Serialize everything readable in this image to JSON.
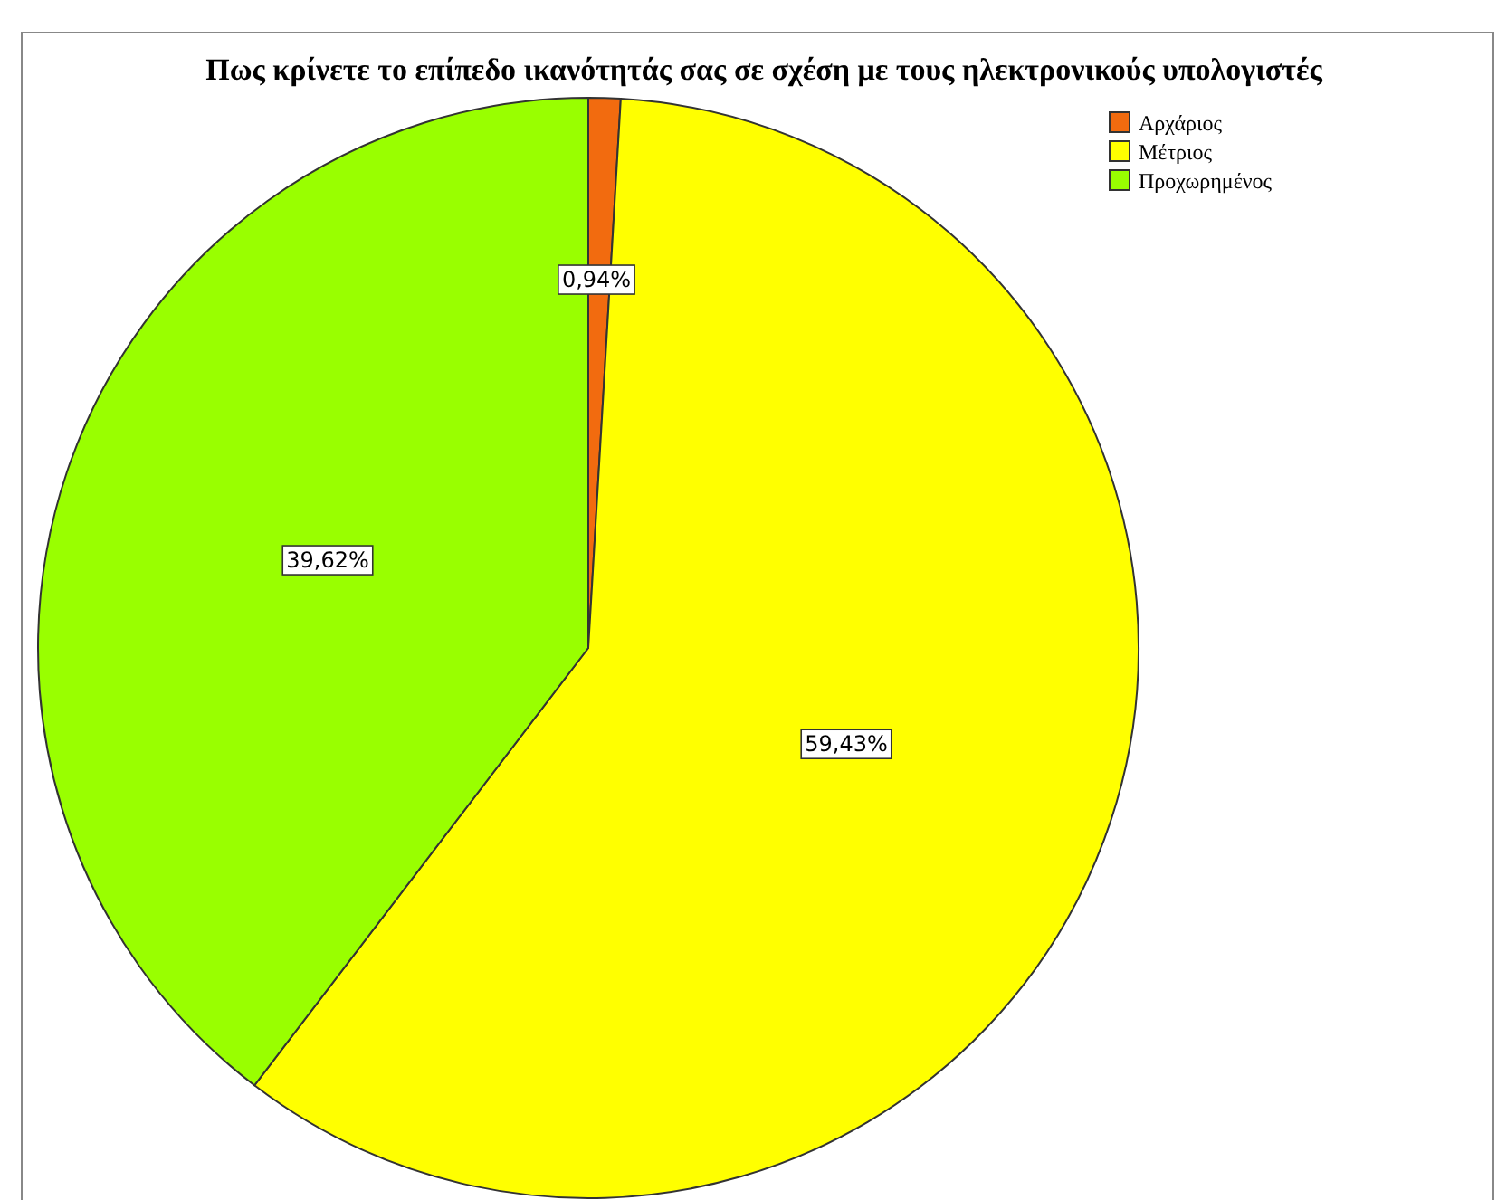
{
  "chart_data": {
    "type": "pie",
    "title": "Πως κρίνετε το επίπεδο ικανότητάς σας σε σχέση με τους ηλεκτρονικούς υπολογιστές",
    "categories": [
      "Αρχάριος",
      "Μέτριος",
      "Προχωρημένος"
    ],
    "values": [
      0.94,
      59.43,
      39.62
    ],
    "colors": [
      "#f26b0f",
      "#ffff00",
      "#99ff00"
    ],
    "value_labels": [
      "0,94%",
      "59,43%",
      "39,62%"
    ],
    "legend": "top right"
  }
}
